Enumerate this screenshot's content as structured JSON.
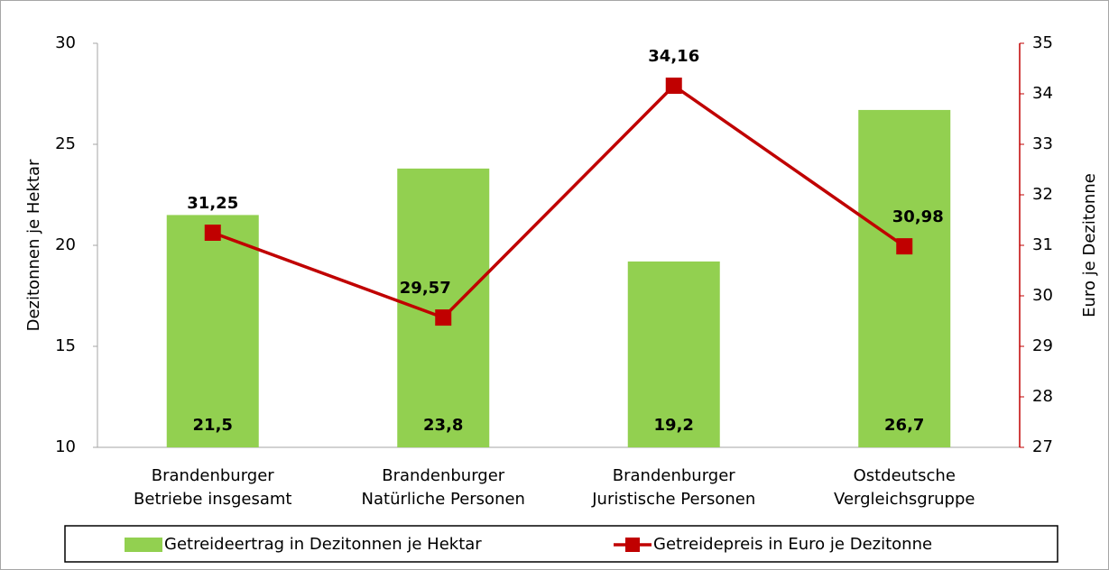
{
  "chart_data": {
    "type": "bar",
    "categories": [
      [
        "Brandenburger",
        "Betriebe insgesamt"
      ],
      [
        "Brandenburger",
        "Natürliche Personen"
      ],
      [
        "Brandenburger",
        "Juristische Personen"
      ],
      [
        "Ostdeutsche",
        "Vergleichsgruppe"
      ]
    ],
    "series": [
      {
        "name": "Getreideertrag in Dezitonnen je Hektar",
        "type": "bar",
        "color": "#92d050",
        "values": [
          21.5,
          23.8,
          19.2,
          26.7
        ],
        "value_labels": [
          "21,5",
          "23,8",
          "19,2",
          "26,7"
        ]
      },
      {
        "name": "Getreidepreis in Euro je Dezitonne",
        "type": "line",
        "axis": "y2",
        "color": "#c00000",
        "values": [
          31.25,
          29.57,
          34.16,
          30.98
        ],
        "value_labels": [
          "31,25",
          "29,57",
          "34,16",
          "30,98"
        ]
      }
    ],
    "ylabel": "Dezitonnen je Hektar",
    "y2label": "Euro je Dezitonne",
    "ylim": [
      10,
      30
    ],
    "yticks": [
      10,
      15,
      20,
      25,
      30
    ],
    "y2lim": [
      27,
      35
    ],
    "y2ticks": [
      27,
      28,
      29,
      30,
      31,
      32,
      33,
      34,
      35
    ],
    "legend": "bottom"
  }
}
